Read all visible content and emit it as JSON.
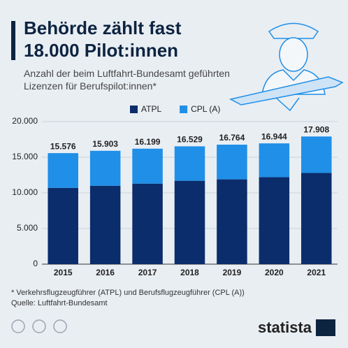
{
  "chart_data": {
    "type": "stacked-bar",
    "title": "Behörde zählt fast 18.000 Pilot:innen",
    "subtitle": "Anzahl der beim Luftfahrt-Bundesamt geführten Lizenzen für Berufspilot:innen*",
    "categories": [
      "2015",
      "2016",
      "2017",
      "2018",
      "2019",
      "2020",
      "2021"
    ],
    "series": [
      {
        "name": "ATPL",
        "color": "#0b2d6b",
        "values": [
          10700,
          11000,
          11300,
          11700,
          11900,
          12200,
          12800
        ]
      },
      {
        "name": "CPL (A)",
        "color": "#1f8fe8",
        "values": [
          4876,
          4903,
          4899,
          4829,
          4864,
          4744,
          5108
        ]
      }
    ],
    "totals": {
      "values": [
        15576,
        15903,
        16199,
        16529,
        16764,
        16944,
        17908
      ],
      "value_labels": [
        "15.576",
        "15.903",
        "16.199",
        "16.529",
        "16.764",
        "16.944",
        "17.908"
      ]
    },
    "ylim": [
      0,
      20000
    ],
    "yticks": [
      0,
      {
        "value": 5000,
        "label": "5.000"
      },
      {
        "value": 10000,
        "label": "10.000"
      },
      {
        "value": 15000,
        "label": "15.000"
      },
      {
        "value": 20000,
        "label": "20.000"
      }
    ],
    "grid": true,
    "legend": "top",
    "footnote": "* Verkehrsflugzeugführer (ATPL) und Berufsflugzeugführer (CPL (A))",
    "source": "Quelle: Luftfahrt-Bundesamt",
    "brand": "statista"
  }
}
